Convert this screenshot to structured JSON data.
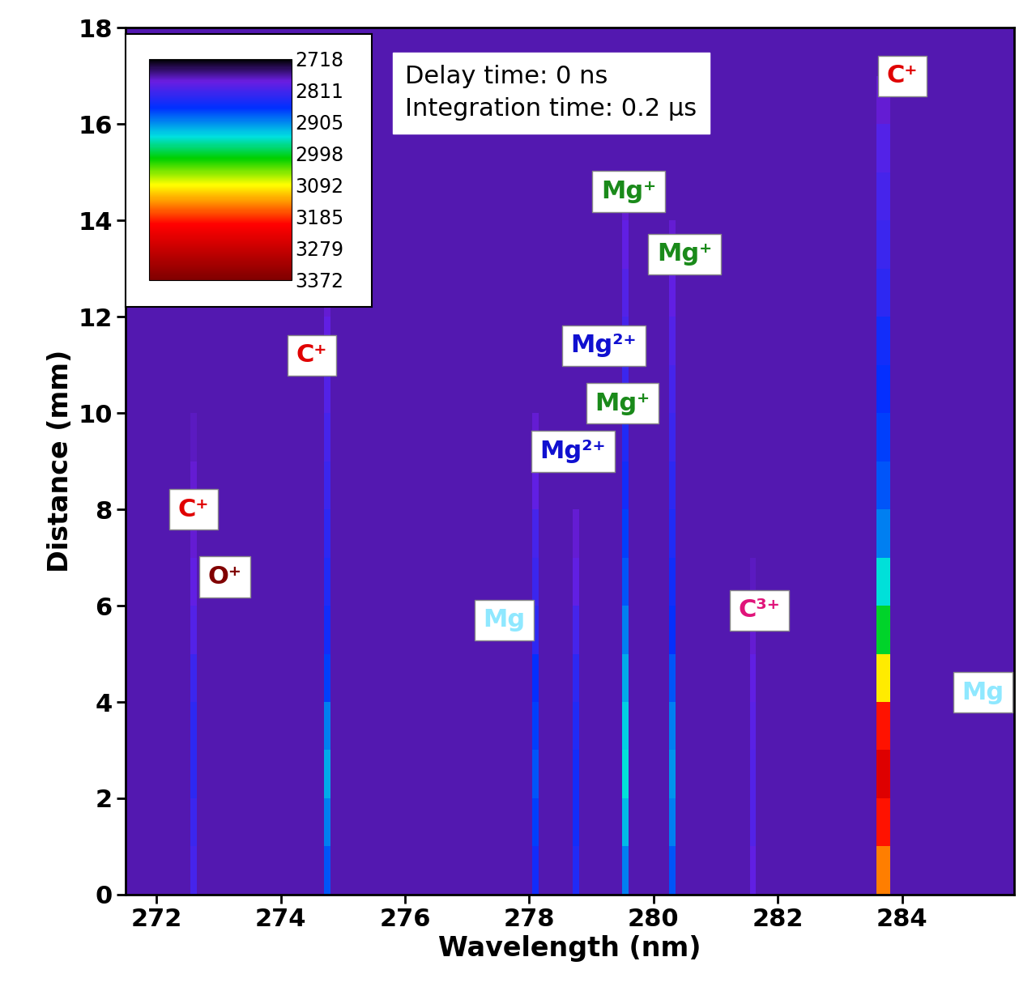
{
  "chart_data": {
    "type": "heatmap",
    "x_label": "Wavelength (nm)",
    "y_label": "Distance (mm)",
    "xlim": [
      271.5,
      285.8
    ],
    "ylim": [
      0,
      18
    ],
    "xticks": [
      272,
      274,
      276,
      278,
      280,
      282,
      284
    ],
    "yticks": [
      0,
      2,
      4,
      6,
      8,
      10,
      12,
      14,
      16,
      18
    ],
    "info_text": [
      "Delay time: 0 ns",
      "Integration time: 0.2 μs"
    ],
    "colorbar_range": [
      2718,
      3372
    ],
    "colorbar_ticks": [
      2718,
      2811,
      2905,
      2998,
      3092,
      3185,
      3279,
      3372
    ],
    "background": 2770,
    "distance_bins": [
      0,
      1,
      2,
      3,
      4,
      5,
      6,
      7,
      8,
      9,
      10,
      11,
      12,
      13,
      14,
      15,
      16,
      17,
      18
    ],
    "lines": [
      {
        "wavelength": 272.6,
        "width_nm": 0.1,
        "values": [
          2810,
          2820,
          2830,
          2830,
          2820,
          2800,
          2790,
          2780,
          2780,
          2775,
          2770,
          2770,
          2770,
          2770,
          2770,
          2770,
          2770,
          2770
        ]
      },
      {
        "wavelength": 274.75,
        "width_nm": 0.1,
        "values": [
          2880,
          2900,
          2920,
          2900,
          2870,
          2850,
          2840,
          2830,
          2820,
          2810,
          2800,
          2790,
          2780,
          2775,
          2770,
          2770,
          2770,
          2770
        ]
      },
      {
        "wavelength": 278.1,
        "width_nm": 0.1,
        "values": [
          2850,
          2870,
          2880,
          2870,
          2860,
          2830,
          2820,
          2810,
          2790,
          2780,
          2770,
          2770,
          2770,
          2770,
          2770,
          2770,
          2770,
          2770
        ]
      },
      {
        "wavelength": 278.75,
        "width_nm": 0.1,
        "values": [
          2840,
          2850,
          2850,
          2840,
          2830,
          2810,
          2790,
          2780,
          2770,
          2770,
          2770,
          2770,
          2770,
          2770,
          2770,
          2770,
          2770,
          2770
        ]
      },
      {
        "wavelength": 279.55,
        "width_nm": 0.1,
        "values": [
          2900,
          2930,
          2950,
          2940,
          2920,
          2900,
          2880,
          2870,
          2850,
          2840,
          2820,
          2810,
          2800,
          2790,
          2780,
          2770,
          2770,
          2770
        ]
      },
      {
        "wavelength": 280.3,
        "width_nm": 0.1,
        "values": [
          2880,
          2900,
          2910,
          2900,
          2880,
          2860,
          2850,
          2840,
          2830,
          2820,
          2810,
          2800,
          2790,
          2780,
          2770,
          2770,
          2770,
          2770
        ]
      },
      {
        "wavelength": 281.6,
        "width_nm": 0.1,
        "values": [
          2790,
          2800,
          2800,
          2795,
          2790,
          2780,
          2775,
          2770,
          2770,
          2770,
          2770,
          2770,
          2770,
          2770,
          2770,
          2770,
          2770,
          2770
        ]
      },
      {
        "wavelength": 283.7,
        "width_nm": 0.22,
        "values": [
          3150,
          3200,
          3250,
          3200,
          3100,
          3000,
          2950,
          2900,
          2880,
          2870,
          2860,
          2850,
          2830,
          2820,
          2810,
          2800,
          2780,
          2770
        ]
      }
    ],
    "annotations": [
      {
        "text": "C⁺",
        "x": 284.0,
        "y": 17.0,
        "color": "#e00000"
      },
      {
        "text": "Mg⁺",
        "x": 279.6,
        "y": 14.6,
        "color": "#1a8a1a"
      },
      {
        "text": "Mg⁺",
        "x": 280.5,
        "y": 13.3,
        "color": "#1a8a1a"
      },
      {
        "text": "Mg²⁺",
        "x": 279.2,
        "y": 11.4,
        "color": "#1010d0"
      },
      {
        "text": "Mg⁺",
        "x": 279.5,
        "y": 10.2,
        "color": "#1a8a1a"
      },
      {
        "text": "Mg²⁺",
        "x": 278.7,
        "y": 9.2,
        "color": "#1010d0"
      },
      {
        "text": "C⁺",
        "x": 274.5,
        "y": 11.2,
        "color": "#e00000"
      },
      {
        "text": "C⁺",
        "x": 272.6,
        "y": 8.0,
        "color": "#e00000"
      },
      {
        "text": "O⁺",
        "x": 273.1,
        "y": 6.6,
        "color": "#800000"
      },
      {
        "text": "Mg",
        "x": 277.6,
        "y": 5.7,
        "color": "#8fe8ff"
      },
      {
        "text": "C³⁺",
        "x": 281.7,
        "y": 5.9,
        "color": "#e0147a"
      },
      {
        "text": "Mg",
        "x": 285.3,
        "y": 4.2,
        "color": "#8fe8ff"
      }
    ]
  }
}
